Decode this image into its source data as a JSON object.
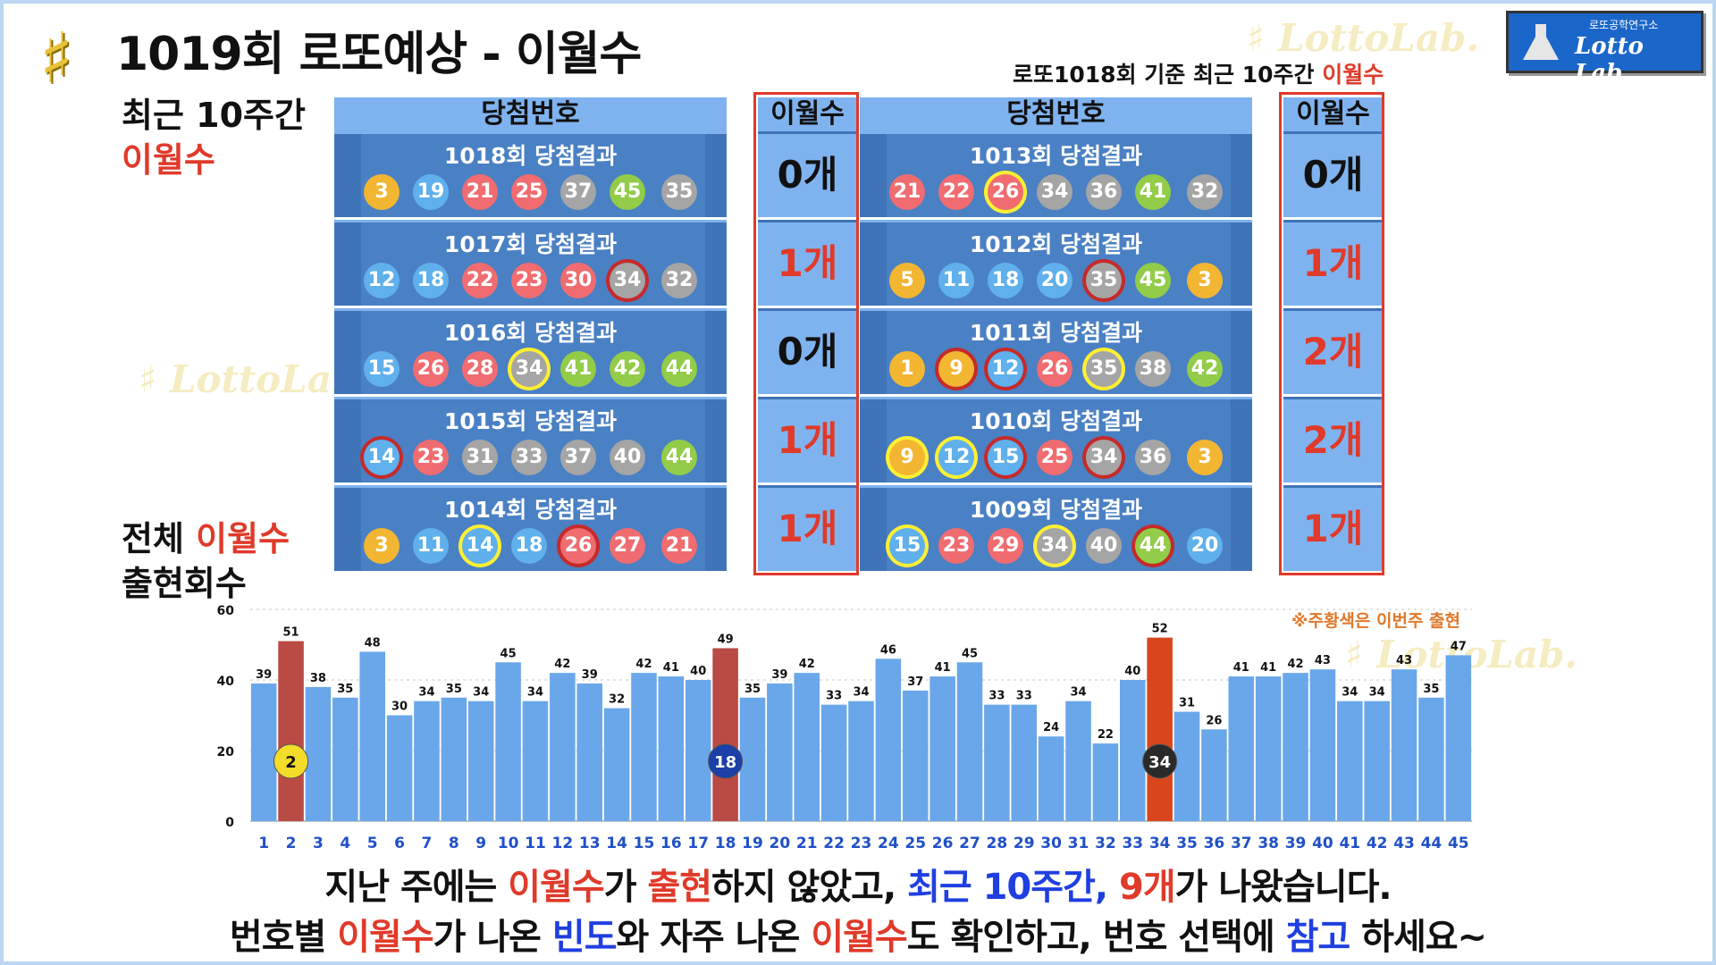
{
  "title": "1019회 로또예상 - 이월수",
  "logo": {
    "small": "로또공학연구소",
    "big": "Lotto Lab.",
    "sharp": "♯"
  },
  "watermark": "♯ LottoLab.",
  "subtitle": {
    "prefix": "로또1018회 기준 최근 10주간 ",
    "highlight": "이월수"
  },
  "side_top": {
    "line1": "최근 10주간",
    "line2": "이월수"
  },
  "side_bottom": {
    "line1a": "전체 ",
    "line1b": "이월수",
    "line2": "출현회수"
  },
  "table_headers": {
    "numbers": "당첨번호",
    "count": "이월수"
  },
  "colors": {
    "yellow": "#f2b632",
    "blue": "#5fb0ec",
    "red": "#f06c70",
    "gray": "#a5a5a5",
    "green": "#92cc48",
    "bar": "#6aa7ea",
    "bar_highlight": "#b94a44",
    "bar_current": "#d9461d",
    "red_text": "#e03a2a"
  },
  "draws": [
    {
      "label": "1018회 당첨결과",
      "count": "0개",
      "count_color": "#111111",
      "balls": [
        {
          "n": 3,
          "c": "yellow"
        },
        {
          "n": 19,
          "c": "blue"
        },
        {
          "n": 21,
          "c": "red"
        },
        {
          "n": 25,
          "c": "red"
        },
        {
          "n": 37,
          "c": "gray"
        },
        {
          "n": 45,
          "c": "green"
        }
      ],
      "bonus": {
        "n": 35,
        "c": "gray"
      }
    },
    {
      "label": "1017회 당첨결과",
      "count": "1개",
      "count_color": "#e03a2a",
      "balls": [
        {
          "n": 12,
          "c": "blue"
        },
        {
          "n": 18,
          "c": "blue"
        },
        {
          "n": 22,
          "c": "red"
        },
        {
          "n": 23,
          "c": "red"
        },
        {
          "n": 30,
          "c": "red"
        },
        {
          "n": 34,
          "c": "gray",
          "ring": "red"
        }
      ],
      "bonus": {
        "n": 32,
        "c": "gray"
      }
    },
    {
      "label": "1016회 당첨결과",
      "count": "0개",
      "count_color": "#111111",
      "balls": [
        {
          "n": 15,
          "c": "blue"
        },
        {
          "n": 26,
          "c": "red"
        },
        {
          "n": 28,
          "c": "red"
        },
        {
          "n": 34,
          "c": "gray",
          "ring": "yellow"
        },
        {
          "n": 41,
          "c": "green"
        },
        {
          "n": 42,
          "c": "green"
        }
      ],
      "bonus": {
        "n": 44,
        "c": "green"
      }
    },
    {
      "label": "1015회 당첨결과",
      "count": "1개",
      "count_color": "#e03a2a",
      "balls": [
        {
          "n": 14,
          "c": "blue",
          "ring": "red"
        },
        {
          "n": 23,
          "c": "red"
        },
        {
          "n": 31,
          "c": "gray"
        },
        {
          "n": 33,
          "c": "gray"
        },
        {
          "n": 37,
          "c": "gray"
        },
        {
          "n": 40,
          "c": "gray"
        }
      ],
      "bonus": {
        "n": 44,
        "c": "green"
      }
    },
    {
      "label": "1014회 당첨결과",
      "count": "1개",
      "count_color": "#e03a2a",
      "balls": [
        {
          "n": 3,
          "c": "yellow"
        },
        {
          "n": 11,
          "c": "blue"
        },
        {
          "n": 14,
          "c": "blue",
          "ring": "yellow"
        },
        {
          "n": 18,
          "c": "blue"
        },
        {
          "n": 26,
          "c": "red",
          "ring": "red"
        },
        {
          "n": 27,
          "c": "red"
        }
      ],
      "bonus": {
        "n": 21,
        "c": "red"
      }
    },
    {
      "label": "1013회 당첨결과",
      "count": "0개",
      "count_color": "#111111",
      "balls": [
        {
          "n": 21,
          "c": "red"
        },
        {
          "n": 22,
          "c": "red"
        },
        {
          "n": 26,
          "c": "red",
          "ring": "yellow"
        },
        {
          "n": 34,
          "c": "gray"
        },
        {
          "n": 36,
          "c": "gray"
        },
        {
          "n": 41,
          "c": "green"
        }
      ],
      "bonus": {
        "n": 32,
        "c": "gray"
      }
    },
    {
      "label": "1012회 당첨결과",
      "count": "1개",
      "count_color": "#e03a2a",
      "balls": [
        {
          "n": 5,
          "c": "yellow"
        },
        {
          "n": 11,
          "c": "blue"
        },
        {
          "n": 18,
          "c": "blue"
        },
        {
          "n": 20,
          "c": "blue"
        },
        {
          "n": 35,
          "c": "gray",
          "ring": "red"
        },
        {
          "n": 45,
          "c": "green"
        }
      ],
      "bonus": {
        "n": 3,
        "c": "yellow"
      }
    },
    {
      "label": "1011회 당첨결과",
      "count": "2개",
      "count_color": "#e03a2a",
      "balls": [
        {
          "n": 1,
          "c": "yellow"
        },
        {
          "n": 9,
          "c": "yellow",
          "ring": "red"
        },
        {
          "n": 12,
          "c": "blue",
          "ring": "red"
        },
        {
          "n": 26,
          "c": "red"
        },
        {
          "n": 35,
          "c": "gray",
          "ring": "yellow"
        },
        {
          "n": 38,
          "c": "gray"
        }
      ],
      "bonus": {
        "n": 42,
        "c": "green"
      }
    },
    {
      "label": "1010회 당첨결과",
      "count": "2개",
      "count_color": "#e03a2a",
      "balls": [
        {
          "n": 9,
          "c": "yellow",
          "ring": "yellow"
        },
        {
          "n": 12,
          "c": "blue",
          "ring": "yellow"
        },
        {
          "n": 15,
          "c": "blue",
          "ring": "red"
        },
        {
          "n": 25,
          "c": "red"
        },
        {
          "n": 34,
          "c": "gray",
          "ring": "red"
        },
        {
          "n": 36,
          "c": "gray"
        }
      ],
      "bonus": {
        "n": 3,
        "c": "yellow"
      }
    },
    {
      "label": "1009회 당첨결과",
      "count": "1개",
      "count_color": "#e03a2a",
      "balls": [
        {
          "n": 15,
          "c": "blue",
          "ring": "yellow"
        },
        {
          "n": 23,
          "c": "red"
        },
        {
          "n": 29,
          "c": "red"
        },
        {
          "n": 34,
          "c": "gray",
          "ring": "yellow"
        },
        {
          "n": 40,
          "c": "gray"
        },
        {
          "n": 44,
          "c": "green",
          "ring": "red"
        }
      ],
      "bonus": {
        "n": 20,
        "c": "blue"
      }
    }
  ],
  "chart_note": "※주황색은 이번주 출현",
  "chart_data": {
    "type": "bar",
    "categories": [
      1,
      2,
      3,
      4,
      5,
      6,
      7,
      8,
      9,
      10,
      11,
      12,
      13,
      14,
      15,
      16,
      17,
      18,
      19,
      20,
      21,
      22,
      23,
      24,
      25,
      26,
      27,
      28,
      29,
      30,
      31,
      32,
      33,
      34,
      35,
      36,
      37,
      38,
      39,
      40,
      41,
      42,
      43,
      44,
      45
    ],
    "values": [
      39,
      51,
      38,
      35,
      48,
      30,
      34,
      35,
      34,
      45,
      34,
      42,
      39,
      32,
      42,
      41,
      40,
      49,
      35,
      39,
      42,
      33,
      34,
      46,
      37,
      41,
      45,
      33,
      33,
      24,
      34,
      22,
      40,
      52,
      31,
      26,
      41,
      41,
      42,
      43,
      34,
      34,
      43,
      35,
      47
    ],
    "ylim": [
      0,
      60
    ],
    "yticks": [
      0,
      20,
      40,
      60
    ],
    "highlight": [
      2,
      18
    ],
    "current": [
      34
    ],
    "markers": [
      {
        "n": 2,
        "label": "2",
        "c": "yellow"
      },
      {
        "n": 18,
        "label": "18",
        "c": "navy"
      },
      {
        "n": 34,
        "label": "34",
        "c": "black"
      }
    ]
  },
  "bottom_line1": [
    {
      "t": "지난 주에는 ",
      "c": "#111"
    },
    {
      "t": "이월수",
      "c": "#e03a2a"
    },
    {
      "t": "가 ",
      "c": "#111"
    },
    {
      "t": "출현",
      "c": "#e03a2a"
    },
    {
      "t": "하지 않았고, ",
      "c": "#111"
    },
    {
      "t": "최근 10주간, ",
      "c": "#1f3fe0"
    },
    {
      "t": "9개",
      "c": "#e03a2a"
    },
    {
      "t": "가 나왔습니다.",
      "c": "#111"
    }
  ],
  "bottom_line2": [
    {
      "t": "번호별 ",
      "c": "#111"
    },
    {
      "t": "이월수",
      "c": "#e03a2a"
    },
    {
      "t": "가 나온 ",
      "c": "#111"
    },
    {
      "t": "빈도",
      "c": "#1f3fe0"
    },
    {
      "t": "와 자주 나온 ",
      "c": "#111"
    },
    {
      "t": "이월수",
      "c": "#e03a2a"
    },
    {
      "t": "도 확인하고, 번호 선택에 ",
      "c": "#111"
    },
    {
      "t": "참고",
      "c": "#1f3fe0"
    },
    {
      "t": " 하세요~",
      "c": "#111"
    }
  ]
}
